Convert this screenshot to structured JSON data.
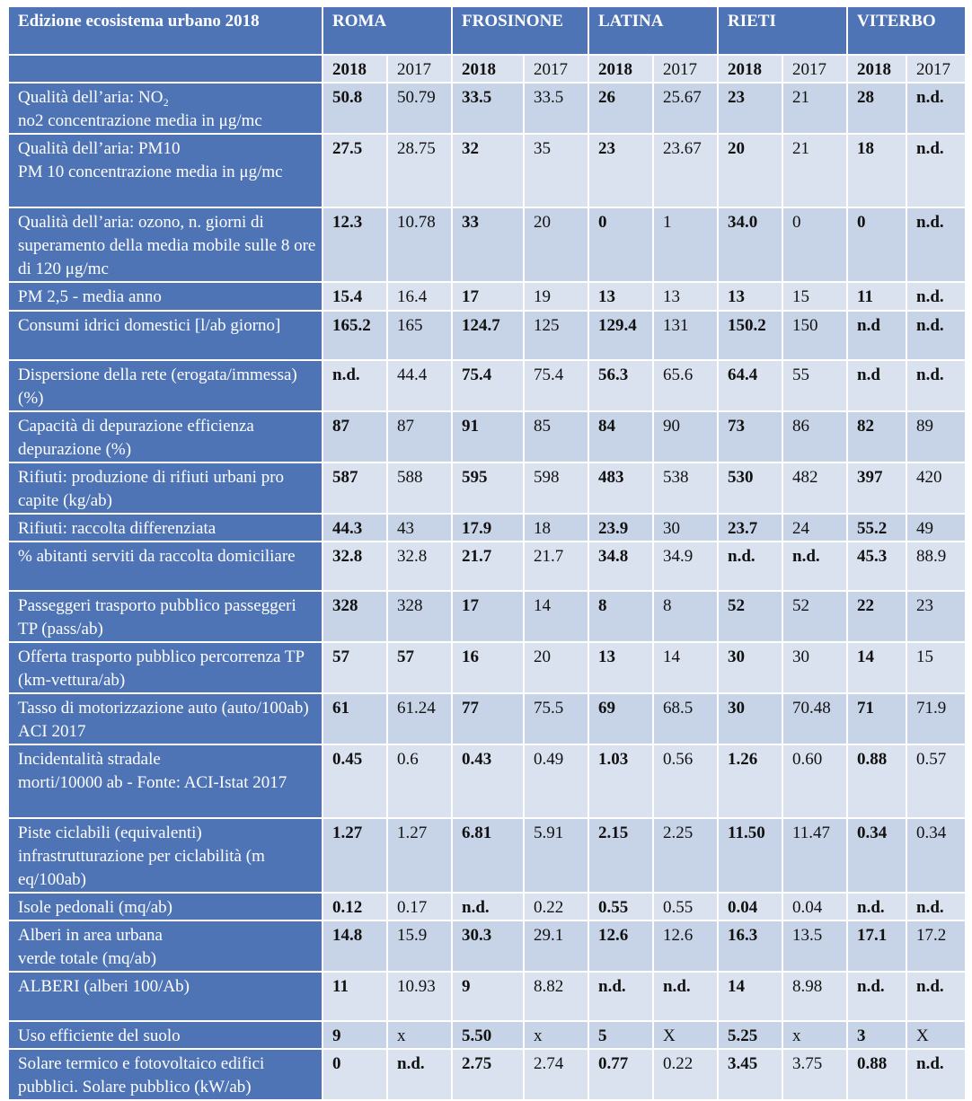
{
  "header": {
    "title": "Edizione ecosistema urbano 2018",
    "cities": [
      "ROMA",
      "FROSINONE",
      "LATINA",
      "RIETI",
      "VITERBO"
    ],
    "years": [
      "2018",
      "2017"
    ]
  },
  "rows": [
    {
      "label": "Qualità dell’aria: NO₂",
      "label2": "no2 concentrazione media in μg/mc",
      "values": [
        "50.8",
        "50.79",
        "33.5",
        "33.5",
        "26",
        "25.67",
        "23",
        "21",
        "28",
        "n.d."
      ],
      "bold": [
        true,
        false,
        true,
        false,
        true,
        false,
        true,
        false,
        true,
        true
      ]
    },
    {
      "label": "Qualità dell’aria: PM10",
      "label2": "PM 10 concentrazione media in μg/mc",
      "values": [
        "27.5",
        "28.75",
        "32",
        "35",
        "23",
        "23.67",
        "20",
        "21",
        "18",
        "n.d."
      ],
      "bold": [
        true,
        false,
        true,
        false,
        true,
        false,
        true,
        false,
        true,
        true
      ]
    },
    {
      "label": "Qualità dell’aria: ozono, n. giorni di superamento della media mobile sulle 8 ore di 120 μg/mc",
      "label2": "",
      "values": [
        "12.3",
        "10.78",
        "33",
        "20",
        "0",
        "1",
        "34.0",
        "0",
        "0",
        "n.d."
      ],
      "bold": [
        true,
        false,
        true,
        false,
        true,
        false,
        true,
        false,
        true,
        true
      ]
    },
    {
      "label": "PM 2,5 - media anno",
      "label2": "",
      "values": [
        "15.4",
        "16.4",
        "17",
        "19",
        "13",
        "13",
        "13",
        "15",
        "11",
        "n.d."
      ],
      "bold": [
        true,
        false,
        true,
        false,
        true,
        false,
        true,
        false,
        true,
        true
      ]
    },
    {
      "label": "Consumi idrici domestici [l/ab giorno]",
      "label2": "",
      "values": [
        "165.2",
        "165",
        "124.7",
        "125",
        "129.4",
        "131",
        "150.2",
        "150",
        "n.d",
        "n.d."
      ],
      "bold": [
        true,
        false,
        true,
        false,
        true,
        false,
        true,
        false,
        true,
        true
      ]
    },
    {
      "label": "Dispersione della rete (erogata/immessa) (%)",
      "label2": "",
      "values": [
        "n.d.",
        "44.4",
        "75.4",
        "75.4",
        "56.3",
        "65.6",
        "64.4",
        "55",
        "n.d",
        "n.d."
      ],
      "bold": [
        true,
        false,
        true,
        false,
        true,
        false,
        true,
        false,
        true,
        true
      ]
    },
    {
      "label": "Capacità di depurazione efficienza depurazione (%)",
      "label2": "",
      "values": [
        "87",
        "87",
        "91",
        "85",
        "84",
        "90",
        "73",
        "86",
        "82",
        "89"
      ],
      "bold": [
        true,
        false,
        true,
        false,
        true,
        false,
        true,
        false,
        true,
        false
      ]
    },
    {
      "label": "Rifiuti: produzione di rifiuti urbani pro capite (kg/ab)",
      "label2": "",
      "values": [
        "587",
        "588",
        "595",
        "598",
        "483",
        "538",
        "530",
        "482",
        "397",
        "420"
      ],
      "bold": [
        true,
        false,
        true,
        false,
        true,
        false,
        true,
        false,
        true,
        false
      ]
    },
    {
      "label": "Rifiuti: raccolta differenziata",
      "label2": "",
      "values": [
        "44.3",
        "43",
        "17.9",
        "18",
        "23.9",
        "30",
        "23.7",
        "24",
        "55.2",
        "49"
      ],
      "bold": [
        true,
        false,
        true,
        false,
        true,
        false,
        true,
        false,
        true,
        false
      ]
    },
    {
      "label": "% abitanti serviti da raccolta domiciliare",
      "label2": "",
      "values": [
        "32.8",
        "32.8",
        "21.7",
        "21.7",
        "34.8",
        "34.9",
        "n.d.",
        "n.d.",
        "45.3",
        "88.9"
      ],
      "bold": [
        true,
        false,
        true,
        false,
        true,
        false,
        true,
        true,
        true,
        false
      ]
    },
    {
      "label": "Passeggeri trasporto pubblico passeggeri  TP (pass/ab)",
      "label2": "",
      "values": [
        "328",
        "328",
        "17",
        "14",
        "8",
        "8",
        "52",
        "52",
        "22",
        "23"
      ],
      "bold": [
        true,
        false,
        true,
        false,
        true,
        false,
        true,
        false,
        true,
        false
      ]
    },
    {
      "label": "Offerta trasporto pubblico percorrenza TP (km-vettura/ab)",
      "label2": "",
      "values": [
        "57",
        "57",
        "16",
        "20",
        "13",
        "14",
        "30",
        "30",
        "14",
        "15"
      ],
      "bold": [
        true,
        true,
        true,
        false,
        true,
        false,
        true,
        false,
        true,
        false
      ]
    },
    {
      "label": "Tasso di motorizzazione auto (auto/100ab) ACI 2017",
      "label2": "",
      "values": [
        "61",
        "61.24",
        "77",
        "75.5",
        "69",
        "68.5",
        "30",
        "70.48",
        "71",
        "71.9"
      ],
      "bold": [
        true,
        false,
        true,
        false,
        true,
        false,
        true,
        false,
        true,
        false
      ]
    },
    {
      "label": "Incidentalità stradale",
      "label2": "morti/10000 ab - Fonte: ACI-Istat 2017",
      "values": [
        "0.45",
        "0.6",
        "0.43",
        "0.49",
        "1.03",
        "0.56",
        "1.26",
        "0.60",
        "0.88",
        "0.57"
      ],
      "bold": [
        true,
        false,
        true,
        false,
        true,
        false,
        true,
        false,
        true,
        false
      ]
    },
    {
      "label": "Piste ciclabili (equivalenti) infrastrutturazione per ciclabilità (m eq/100ab)",
      "label2": "",
      "values": [
        "1.27",
        "1.27",
        "6.81",
        "5.91",
        "2.15",
        "2.25",
        "11.50",
        "11.47",
        "0.34",
        "0.34"
      ],
      "bold": [
        true,
        false,
        true,
        false,
        true,
        false,
        true,
        false,
        true,
        false
      ]
    },
    {
      "label": "Isole pedonali (mq/ab)",
      "label2": "",
      "values": [
        "0.12",
        "0.17",
        "n.d.",
        "0.22",
        "0.55",
        "0.55",
        "0.04",
        "0.04",
        "n.d.",
        "n.d."
      ],
      "bold": [
        true,
        false,
        true,
        false,
        true,
        false,
        true,
        false,
        true,
        true
      ]
    },
    {
      "label": "Alberi in area urbana",
      "label2": "verde totale (mq/ab)",
      "values": [
        "14.8",
        "15.9",
        "30.3",
        "29.1",
        "12.6",
        "12.6",
        "16.3",
        "13.5",
        "17.1",
        "17.2"
      ],
      "bold": [
        true,
        false,
        true,
        false,
        true,
        false,
        true,
        false,
        true,
        false
      ]
    },
    {
      "label": "ALBERI (alberi 100/Ab)",
      "label2": "",
      "values": [
        "11",
        "10.93",
        "9",
        "8.82",
        "n.d.",
        "n.d.",
        "14",
        "8.98",
        "n.d.",
        "n.d."
      ],
      "bold": [
        true,
        false,
        true,
        false,
        true,
        true,
        true,
        false,
        true,
        true
      ]
    },
    {
      "label": "Uso efficiente del suolo",
      "label2": "",
      "values": [
        "9",
        "x",
        "5.50",
        "x",
        "5",
        "X",
        "5.25",
        "x",
        "3",
        "X"
      ],
      "bold": [
        true,
        false,
        true,
        false,
        true,
        false,
        true,
        false,
        true,
        false
      ]
    },
    {
      "label": "Solare termico e fotovoltaico edifici pubblici. Solare pubblico (kW/ab)",
      "label2": "",
      "values": [
        "0",
        "n.d.",
        "2.75",
        "2.74",
        "0.77",
        "0.22",
        "3.45",
        "3.75",
        "0.88",
        "n.d."
      ],
      "bold": [
        true,
        true,
        true,
        false,
        true,
        false,
        true,
        false,
        true,
        true
      ]
    }
  ]
}
